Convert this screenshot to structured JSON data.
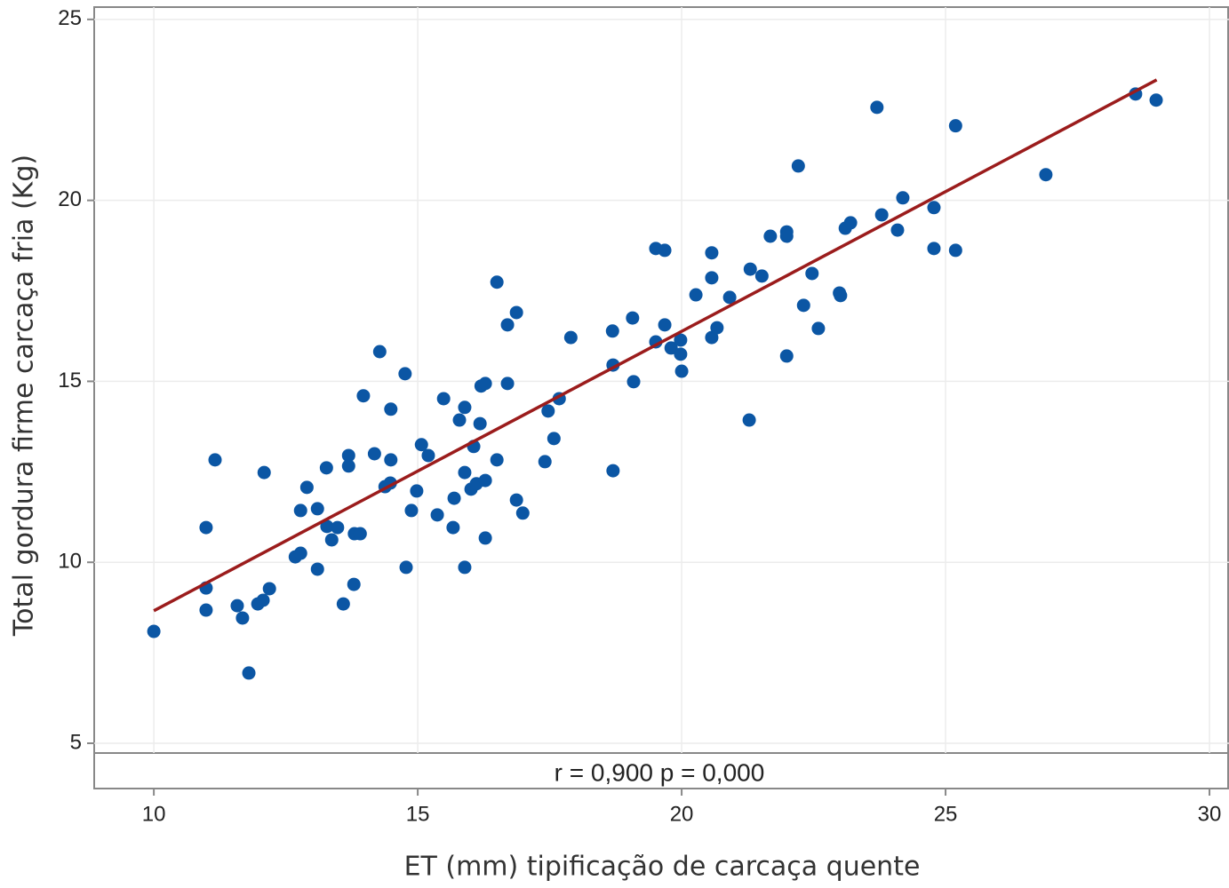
{
  "chart_data": {
    "type": "scatter",
    "x_label": "ET (mm) tipificação de carcaça quente",
    "y_label": "Total gordura firme carcaça fria (Kg)",
    "annotation": "r = 0,900  p = 0,000",
    "xlim": [
      8.87,
      30.37
    ],
    "ylim": [
      4.73,
      25.34
    ],
    "xticks": [
      10,
      15,
      20,
      25,
      30
    ],
    "yticks": [
      5,
      10,
      15,
      20,
      25
    ],
    "grid": true,
    "series": [
      {
        "color": "#0b56a4",
        "x": [
          10.0,
          10.99,
          10.99,
          10.99,
          11.16,
          11.58,
          11.68,
          11.8,
          11.97,
          12.07,
          12.09,
          12.19,
          12.68,
          12.78,
          12.78,
          12.9,
          13.1,
          13.1,
          13.27,
          13.28,
          13.37,
          13.48,
          13.59,
          13.69,
          13.69,
          13.79,
          13.8,
          13.91,
          13.97,
          14.18,
          14.28,
          14.38,
          14.48,
          14.49,
          14.49,
          14.76,
          14.78,
          14.88,
          14.98,
          15.07,
          15.2,
          15.37,
          15.49,
          15.67,
          15.69,
          15.79,
          15.89,
          15.89,
          15.89,
          16.01,
          16.06,
          16.11,
          16.18,
          16.2,
          16.28,
          16.28,
          16.28,
          16.5,
          16.5,
          16.7,
          16.7,
          16.87,
          16.87,
          16.99,
          17.41,
          17.47,
          17.58,
          17.68,
          17.9,
          18.69,
          18.7,
          18.7,
          19.07,
          19.09,
          19.51,
          19.51,
          19.68,
          19.68,
          19.8,
          19.98,
          19.98,
          20.0,
          20.27,
          20.57,
          20.57,
          20.57,
          20.67,
          20.91,
          21.28,
          21.3,
          21.52,
          21.68,
          21.99,
          21.99,
          21.99,
          22.21,
          22.31,
          22.47,
          22.59,
          22.99,
          23.01,
          23.1,
          23.2,
          23.7,
          23.79,
          24.09,
          24.19,
          24.78,
          24.78,
          25.19,
          25.19,
          26.9,
          28.6,
          28.99
        ],
        "values": [
          8.09,
          10.96,
          9.29,
          8.68,
          12.83,
          8.8,
          8.46,
          6.94,
          8.85,
          8.95,
          12.48,
          9.27,
          10.15,
          10.25,
          11.43,
          12.07,
          11.48,
          9.81,
          12.61,
          10.99,
          10.62,
          10.96,
          8.85,
          12.95,
          12.66,
          9.39,
          10.79,
          10.79,
          14.6,
          13.0,
          15.82,
          12.09,
          12.19,
          14.23,
          12.83,
          15.21,
          9.86,
          11.43,
          11.97,
          13.25,
          12.95,
          11.31,
          14.52,
          10.96,
          11.77,
          13.93,
          14.28,
          12.48,
          9.86,
          12.02,
          13.2,
          12.17,
          13.83,
          14.87,
          14.94,
          12.26,
          10.67,
          17.74,
          12.83,
          16.56,
          14.94,
          16.9,
          11.72,
          11.36,
          12.78,
          14.18,
          13.42,
          14.52,
          16.21,
          16.39,
          15.45,
          12.53,
          16.75,
          14.99,
          18.67,
          16.09,
          18.62,
          16.56,
          15.92,
          16.14,
          15.75,
          15.28,
          17.39,
          18.55,
          17.86,
          16.21,
          16.48,
          17.32,
          13.93,
          18.1,
          17.91,
          19.01,
          19.13,
          19.01,
          15.7,
          20.95,
          17.1,
          17.98,
          16.46,
          17.44,
          17.37,
          19.23,
          19.38,
          22.57,
          19.6,
          19.18,
          20.07,
          19.8,
          18.67,
          22.06,
          18.62,
          20.71,
          22.94,
          22.77
        ]
      }
    ],
    "fit_line": {
      "color": "#9b1c1c",
      "x": [
        10,
        29
      ],
      "values": [
        8.66,
        23.33
      ]
    }
  }
}
